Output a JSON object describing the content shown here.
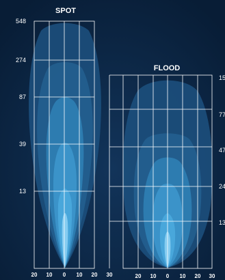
{
  "colors": {
    "background": "#0b2645",
    "grid": "#ffffff",
    "beam_outer": "#1c4f7c",
    "beam_mid": "#2f7fb4",
    "beam_inner": "#4aa8dc",
    "beam_core": "#8fd2f5"
  },
  "spot": {
    "title": "SPOT",
    "y_labels": [
      "548",
      "274",
      "87",
      "39",
      "13"
    ],
    "x_labels": [
      "20",
      "10",
      "0",
      "10",
      "20"
    ]
  },
  "flood": {
    "title": "FLOOD",
    "y_labels": [
      "15",
      "77",
      "47",
      "24",
      "13"
    ],
    "x_labels": [
      "30",
      "20",
      "10",
      "0",
      "10",
      "20",
      "30"
    ]
  }
}
